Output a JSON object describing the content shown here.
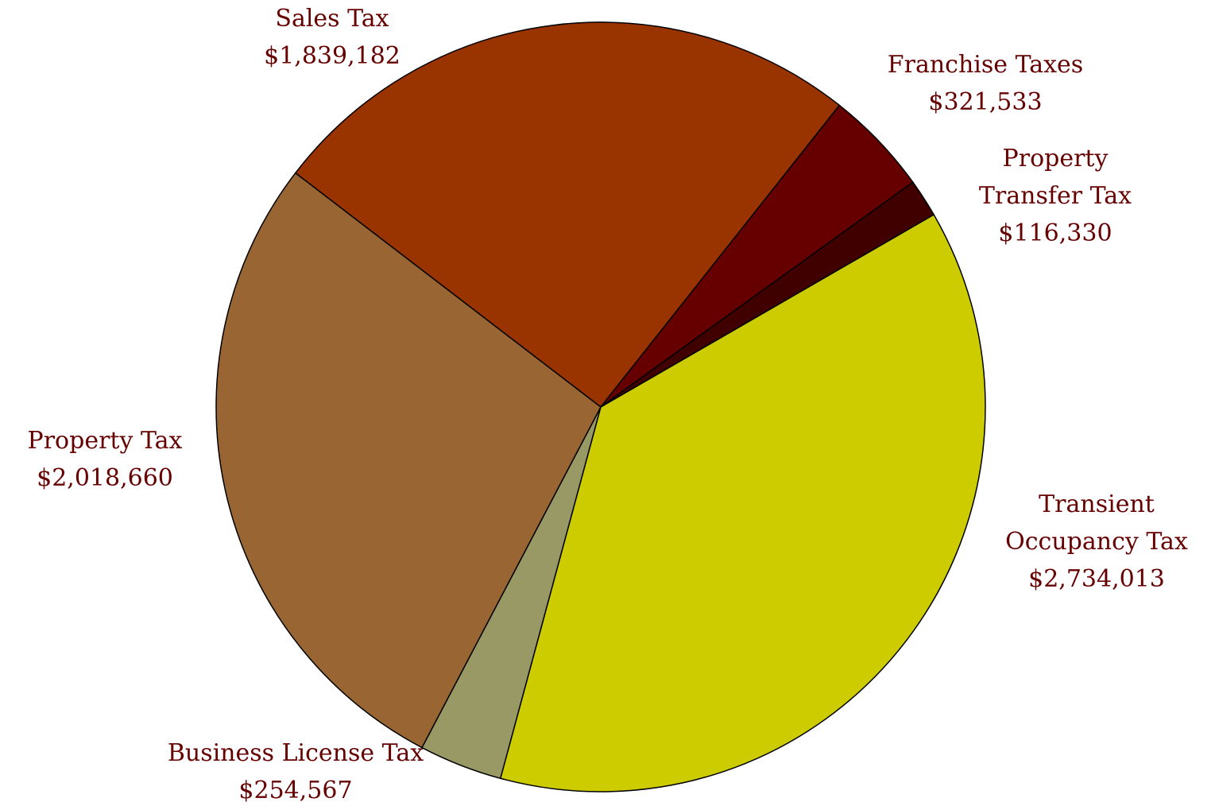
{
  "chart_data": {
    "type": "pie",
    "categories": [
      "Transient Occupancy Tax",
      "Business License Tax",
      "Property Tax",
      "Sales Tax",
      "Franchise Taxes",
      "Property Transfer Tax"
    ],
    "values": [
      2734013,
      254567,
      2018660,
      1839182,
      321533,
      116330
    ],
    "value_labels": [
      "$2,734,013",
      "$254,567",
      "$2,018,660",
      "$1,839,182",
      "$321,533",
      "$116,330"
    ],
    "colors": [
      "#cccc00",
      "#999966",
      "#996633",
      "#993300",
      "#660000",
      "#400000"
    ]
  }
}
